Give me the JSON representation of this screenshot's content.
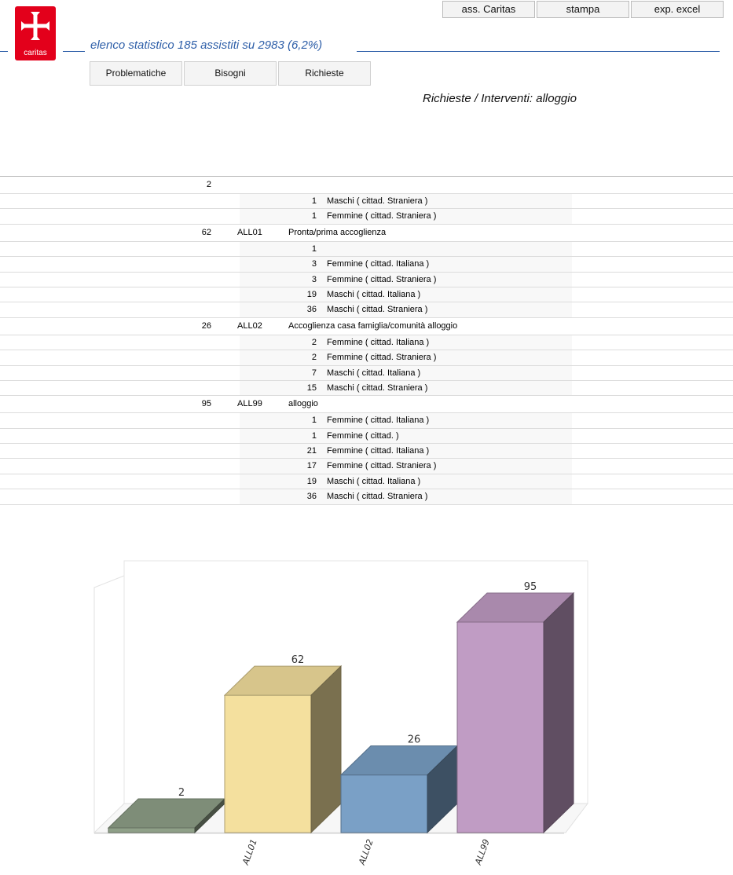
{
  "logo": {
    "text": "caritas"
  },
  "top_buttons": [
    {
      "label": "ass. Caritas"
    },
    {
      "label": "stampa"
    },
    {
      "label": "exp. excel"
    }
  ],
  "header": {
    "title": "elenco statistico 185 assistiti su 2983  (6,2%)"
  },
  "tabs": [
    {
      "label": "Problematiche"
    },
    {
      "label": "Bisogni"
    },
    {
      "label": "Richieste"
    }
  ],
  "subtitle": "Richieste / Interventi: alloggio",
  "rows": [
    {
      "type": "main",
      "total": "2",
      "code": "",
      "desc": ""
    },
    {
      "type": "sub",
      "count": "1",
      "label": "Maschi ( cittad. Straniera )"
    },
    {
      "type": "sub",
      "count": "1",
      "label": "Femmine ( cittad. Straniera )"
    },
    {
      "type": "main",
      "total": "62",
      "code": "ALL01",
      "desc": "Pronta/prima accoglienza"
    },
    {
      "type": "sub",
      "count": "1",
      "label": ""
    },
    {
      "type": "sub",
      "count": "3",
      "label": "Femmine ( cittad. Italiana )"
    },
    {
      "type": "sub",
      "count": "3",
      "label": "Femmine ( cittad. Straniera )"
    },
    {
      "type": "sub",
      "count": "19",
      "label": "Maschi ( cittad. Italiana )"
    },
    {
      "type": "sub",
      "count": "36",
      "label": "Maschi ( cittad. Straniera )"
    },
    {
      "type": "main",
      "total": "26",
      "code": "ALL02",
      "desc": "Accoglienza casa famiglia/comunità alloggio"
    },
    {
      "type": "sub",
      "count": "2",
      "label": "Femmine ( cittad. Italiana )"
    },
    {
      "type": "sub",
      "count": "2",
      "label": "Femmine ( cittad. Straniera )"
    },
    {
      "type": "sub",
      "count": "7",
      "label": "Maschi ( cittad. Italiana )"
    },
    {
      "type": "sub",
      "count": "15",
      "label": "Maschi ( cittad. Straniera )"
    },
    {
      "type": "main",
      "total": "95",
      "code": "ALL99",
      "desc": "alloggio"
    },
    {
      "type": "sub",
      "count": "1",
      "label": "Femmine ( cittad. Italiana )"
    },
    {
      "type": "sub",
      "count": "1",
      "label": "Femmine ( cittad.  )"
    },
    {
      "type": "sub",
      "count": "21",
      "label": "Femmine ( cittad. Italiana )"
    },
    {
      "type": "sub",
      "count": "17",
      "label": "Femmine ( cittad. Straniera )"
    },
    {
      "type": "sub",
      "count": "19",
      "label": "Maschi ( cittad. Italiana )"
    },
    {
      "type": "sub",
      "count": "36",
      "label": "Maschi ( cittad. Straniera )"
    }
  ],
  "chart_data": {
    "type": "bar",
    "categories": [
      "",
      "ALL01",
      "ALL02",
      "ALL99"
    ],
    "values": [
      2,
      62,
      26,
      95
    ],
    "colors": [
      "#8fa088",
      "#f4e09e",
      "#7aa0c6",
      "#c09cc4"
    ],
    "ylim": [
      0,
      95
    ],
    "title": "",
    "xlabel": "",
    "ylabel": ""
  }
}
